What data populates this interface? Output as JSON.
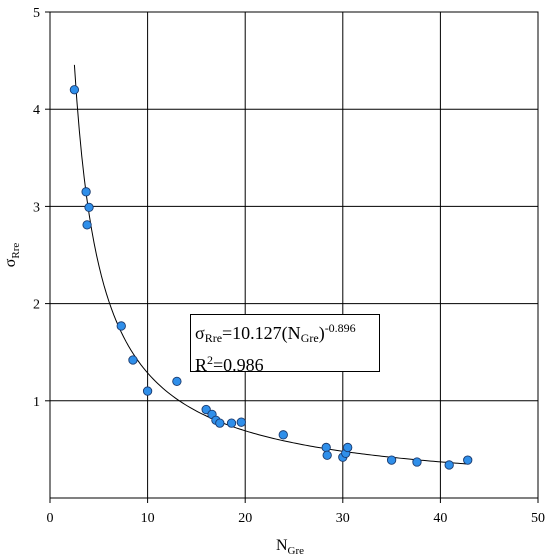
{
  "chart_data": {
    "type": "scatter",
    "xlabel": {
      "main": "N",
      "sub": "Gre"
    },
    "ylabel": {
      "main": "σ",
      "sub": "Rre"
    },
    "xlim": [
      0,
      50
    ],
    "ylim": [
      0,
      5
    ],
    "x_ticks": [
      "0",
      "10",
      "20",
      "30",
      "40",
      "50"
    ],
    "y_ticks": [
      "1",
      "2",
      "3",
      "4",
      "5"
    ],
    "grid": true,
    "points": [
      {
        "x": 2.5,
        "y": 4.2
      },
      {
        "x": 3.7,
        "y": 3.15
      },
      {
        "x": 4.0,
        "y": 2.99
      },
      {
        "x": 3.8,
        "y": 2.81
      },
      {
        "x": 7.3,
        "y": 1.77
      },
      {
        "x": 8.5,
        "y": 1.42
      },
      {
        "x": 10.0,
        "y": 1.1
      },
      {
        "x": 13.0,
        "y": 1.2
      },
      {
        "x": 16.0,
        "y": 0.91
      },
      {
        "x": 16.6,
        "y": 0.86
      },
      {
        "x": 17.0,
        "y": 0.8
      },
      {
        "x": 17.4,
        "y": 0.77
      },
      {
        "x": 18.6,
        "y": 0.77
      },
      {
        "x": 19.6,
        "y": 0.78
      },
      {
        "x": 23.9,
        "y": 0.65
      },
      {
        "x": 28.3,
        "y": 0.52
      },
      {
        "x": 28.4,
        "y": 0.44
      },
      {
        "x": 30.0,
        "y": 0.42
      },
      {
        "x": 30.3,
        "y": 0.46
      },
      {
        "x": 30.5,
        "y": 0.52
      },
      {
        "x": 35.0,
        "y": 0.39
      },
      {
        "x": 37.6,
        "y": 0.37
      },
      {
        "x": 40.9,
        "y": 0.34
      },
      {
        "x": 42.8,
        "y": 0.39
      }
    ],
    "fit": {
      "type": "power",
      "a": 10.127,
      "b": -0.896,
      "x_range": [
        2.5,
        42.8
      ]
    },
    "annotation": {
      "lhs": "σ",
      "lhs_sub": "Rre",
      "mid": "=10.127(N",
      "mid_sub": "Gre",
      "close": ")",
      "exp": "-0.896",
      "r2_main": "R",
      "r2_sup": "2",
      "r2_val": "=0.986"
    }
  }
}
